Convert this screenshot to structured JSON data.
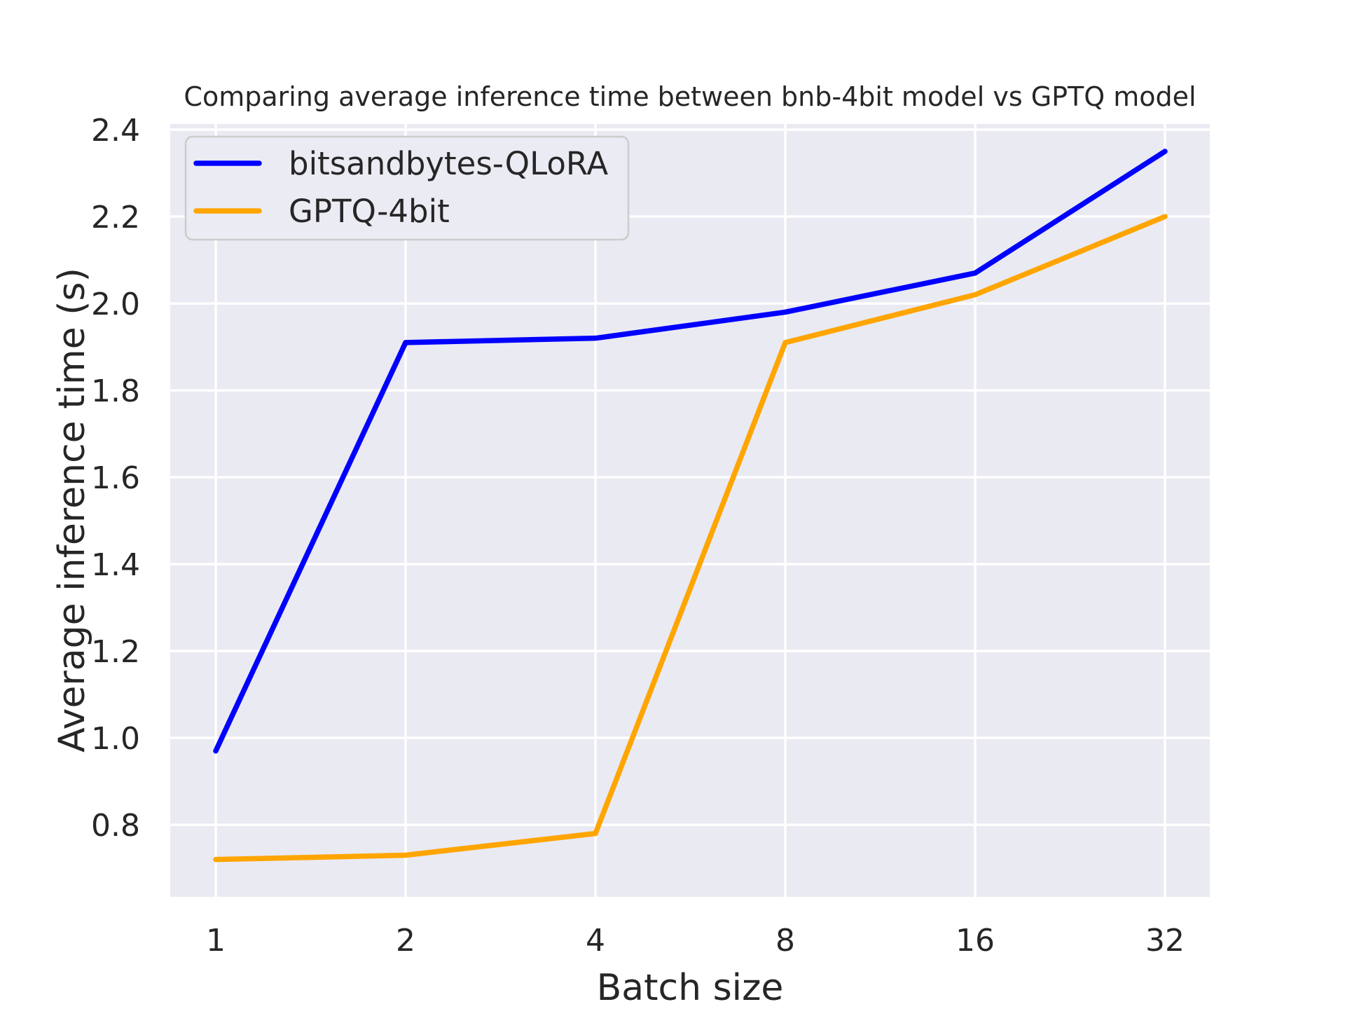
{
  "figure": {
    "background_color": "#ffffff"
  },
  "chart_data": {
    "type": "line",
    "title": "Comparing average inference time between bnb-4bit model vs GPTQ model",
    "xlabel": "Batch size",
    "ylabel": "Average inference time (s)",
    "x_scale": "log2-category",
    "categories": [
      1,
      2,
      4,
      8,
      16,
      32
    ],
    "x_tick_labels": [
      "1",
      "2",
      "4",
      "8",
      "16",
      "32"
    ],
    "y_ticks": [
      0.8,
      1.0,
      1.2,
      1.4,
      1.6,
      1.8,
      2.0,
      2.2,
      2.4
    ],
    "y_tick_labels": [
      "0.8",
      "1.0",
      "1.2",
      "1.4",
      "1.6",
      "1.8",
      "2.0",
      "2.2",
      "2.4"
    ],
    "ylim": [
      0.634,
      2.413
    ],
    "grid": true,
    "legend_position": "upper-left",
    "series": [
      {
        "name": "bitsandbytes-QLoRA",
        "color": "#0000ff",
        "values": [
          0.97,
          1.91,
          1.92,
          1.98,
          2.07,
          2.35
        ]
      },
      {
        "name": "GPTQ-4bit",
        "color": "#ffa500",
        "values": [
          0.72,
          0.73,
          0.78,
          1.91,
          2.02,
          2.2
        ]
      }
    ],
    "colors": {
      "figure_background": "#ffffff",
      "axes_background": "#eaeaf2",
      "grid": "#ffffff",
      "text": "#262626",
      "legend_face": "#ebebf3",
      "legend_border": "#cccccc"
    }
  }
}
